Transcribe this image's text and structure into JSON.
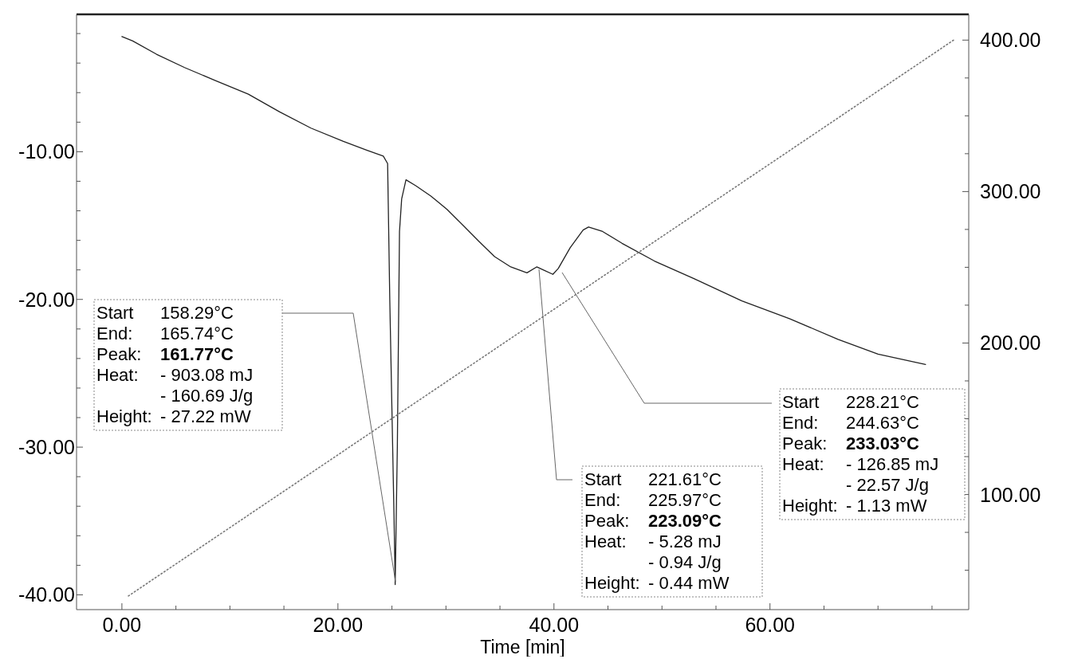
{
  "chart_data": {
    "type": "line",
    "xlabel": "Time  [min]",
    "xlim": [
      -4.2,
      78.4
    ],
    "xticks": [
      {
        "value": 0,
        "label": "0.00"
      },
      {
        "value": 5,
        "label": null
      },
      {
        "value": 10,
        "label": null
      },
      {
        "value": 15,
        "label": null
      },
      {
        "value": 20,
        "label": "20.00"
      },
      {
        "value": 25,
        "label": null
      },
      {
        "value": 30,
        "label": null
      },
      {
        "value": 35,
        "label": null
      },
      {
        "value": 40,
        "label": "40.00"
      },
      {
        "value": 45,
        "label": null
      },
      {
        "value": 50,
        "label": null
      },
      {
        "value": 55,
        "label": null
      },
      {
        "value": 60,
        "label": "60.00"
      },
      {
        "value": 65,
        "label": null
      },
      {
        "value": 70,
        "label": null
      },
      {
        "value": 75,
        "label": null
      }
    ],
    "ylim": [
      -41,
      -0.7
    ],
    "yticks": [
      {
        "value": -10,
        "label": "-10.00"
      },
      {
        "value": -12,
        "label": null
      },
      {
        "value": -14,
        "label": null
      },
      {
        "value": -16,
        "label": null
      },
      {
        "value": -18,
        "label": null
      },
      {
        "value": -20,
        "label": "-20.00"
      },
      {
        "value": -22,
        "label": null
      },
      {
        "value": -24,
        "label": null
      },
      {
        "value": -26,
        "label": null
      },
      {
        "value": -28,
        "label": null
      },
      {
        "value": -30,
        "label": "-30.00"
      },
      {
        "value": -32,
        "label": null
      },
      {
        "value": -34,
        "label": null
      },
      {
        "value": -36,
        "label": null
      },
      {
        "value": -38,
        "label": null
      },
      {
        "value": -40,
        "label": "-40.00"
      },
      {
        "value": -8,
        "label": null
      },
      {
        "value": -6,
        "label": null
      },
      {
        "value": -4,
        "label": null
      },
      {
        "value": -2,
        "label": null
      }
    ],
    "y2lim": [
      24,
      417
    ],
    "y2ticks": [
      {
        "value": 100,
        "label": "100.00"
      },
      {
        "value": 125,
        "label": null
      },
      {
        "value": 150,
        "label": null
      },
      {
        "value": 175,
        "label": null
      },
      {
        "value": 200,
        "label": "200.00"
      },
      {
        "value": 225,
        "label": null
      },
      {
        "value": 250,
        "label": null
      },
      {
        "value": 275,
        "label": null
      },
      {
        "value": 300,
        "label": "300.00"
      },
      {
        "value": 325,
        "label": null
      },
      {
        "value": 350,
        "label": null
      },
      {
        "value": 375,
        "label": null
      },
      {
        "value": 400,
        "label": "400.00"
      },
      {
        "value": 50,
        "label": null
      },
      {
        "value": 75,
        "label": null
      }
    ],
    "grid": false,
    "series": [
      {
        "color": "#222222",
        "line_style": "solid",
        "x": [
          0,
          1.0,
          3.2,
          5.8,
          8.7,
          11.7,
          14.6,
          17.5,
          20.5,
          22.7,
          24.2,
          24.6,
          24.8,
          25.2,
          25.3,
          25.5,
          25.7,
          25.9,
          26.3,
          27.2,
          28.6,
          30.1,
          31.6,
          33.1,
          34.5,
          36.0,
          37.5,
          38.4,
          39.0,
          39.9,
          40.4,
          41.5,
          42.7,
          43.2,
          44.5,
          46.3,
          49.3,
          53.0,
          57.4,
          61.8,
          66.3,
          70.0,
          74.4
        ],
        "values": [
          -2.2,
          -2.5,
          -3.4,
          -4.3,
          -5.2,
          -6.1,
          -7.3,
          -8.4,
          -9.3,
          -9.9,
          -10.3,
          -10.8,
          -20,
          -35,
          -39.3,
          -30,
          -15.4,
          -13.2,
          -11.9,
          -12.3,
          -13.0,
          -13.9,
          -15.0,
          -16.1,
          -17.1,
          -17.8,
          -18.2,
          -17.8,
          -18.0,
          -18.3,
          -17.9,
          -16.5,
          -15.3,
          -15.1,
          -15.4,
          -16.2,
          -17.4,
          -18.6,
          -20.1,
          -21.3,
          -22.7,
          -23.7,
          -24.4
        ]
      },
      {
        "color": "#777777",
        "line_style": "dotted",
        "axis": "y2",
        "x": [
          0.6,
          77.0
        ],
        "values": [
          33,
          400
        ]
      }
    ],
    "annotations": [
      "Start 158.29°C",
      "End: 165.74°C",
      "Peak: 161.77°C",
      "Heat: - 903.08 mJ",
      "- 160.69 J/g",
      "Height: - 27.22 mW",
      "Start 221.61°C",
      "End: 225.97°C",
      "Peak: 223.09°C",
      "Heat: - 5.28 mJ",
      "- 0.94 J/g",
      "Height: - 0.44 mW",
      "Start 228.21°C",
      "End: 244.63°C",
      "Peak: 233.03°C",
      "Heat: - 126.85 mJ",
      "- 22.57 J/g",
      "Height: - 1.13 mW"
    ]
  }
}
